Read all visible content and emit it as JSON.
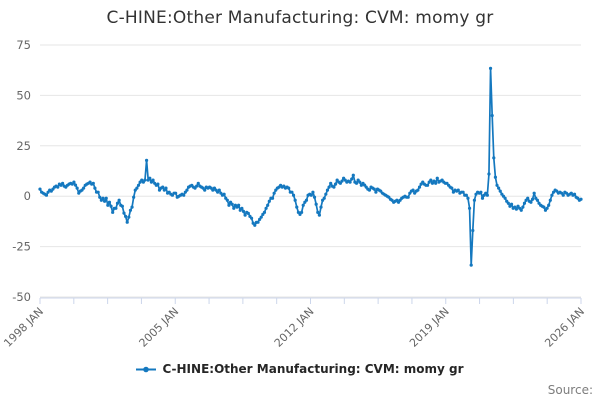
{
  "header": {
    "title": "C-HINE:Other Manufacturing: CVM: momy gr"
  },
  "legend": {
    "label": "C-HINE:Other Manufacturing: CVM: momy gr"
  },
  "footer": {
    "source_label": "Source:"
  },
  "colors": {
    "series": "#1478bf",
    "axis_line": "#ccd6eb",
    "grid_line": "#e6e6e6",
    "tick_label": "#666666",
    "title_text": "#333333",
    "legend_text": "#262626",
    "source_text": "#7d7d7d",
    "background": "#ffffff"
  },
  "chart_data": {
    "type": "line",
    "title": "C-HINE:Other Manufacturing: CVM: momy gr",
    "x_range": [
      "1998 JAN",
      "2026 JAN"
    ],
    "x_tick_labels": [
      "1998 JAN",
      "2005 JAN",
      "2012 JAN",
      "2019 JAN",
      "2026 JAN"
    ],
    "x_minor_tick_count": 17,
    "ylim": [
      -50,
      75
    ],
    "y_ticks": [
      75,
      50,
      25,
      0,
      -25,
      -50
    ],
    "grid": "horizontal",
    "legend_position": "bottom",
    "marker": "circle",
    "series": [
      {
        "name": "C-HINE:Other Manufacturing: CVM: momy gr",
        "color": "#1478bf",
        "start": "1998 JAN",
        "frequency": "monthly",
        "unit": "percent growth",
        "values": [
          3.5,
          2,
          1.5,
          1,
          0.5,
          2,
          3,
          2.5,
          3.5,
          4.5,
          5,
          4.5,
          6,
          5.4,
          6.4,
          5,
          4.5,
          5.4,
          6,
          6.4,
          6,
          7,
          5.5,
          4,
          1.5,
          2.5,
          3,
          4,
          5.4,
          6,
          6.4,
          7,
          6,
          6.4,
          4,
          2,
          2,
          -0.5,
          -2,
          -1,
          -2.5,
          -1,
          -4.5,
          -3,
          -5,
          -8,
          -6,
          -6,
          -3.5,
          -2,
          -4.5,
          -5,
          -8.4,
          -10,
          -12.9,
          -10.4,
          -7,
          -5.4,
          -0.5,
          3,
          4,
          5.4,
          7,
          8,
          7,
          8,
          17.8,
          8,
          8.9,
          7,
          8,
          6.4,
          5.4,
          6,
          3,
          4,
          4.5,
          3,
          4,
          1.5,
          2,
          1,
          0.5,
          1.5,
          1.5,
          -0.5,
          0,
          0.5,
          1,
          0.5,
          2,
          3,
          4.5,
          5,
          5.4,
          4.5,
          4,
          5,
          6.4,
          5,
          4.5,
          4,
          3,
          4.5,
          4,
          4.5,
          4,
          3,
          4,
          3,
          2,
          3,
          1.5,
          0.5,
          1,
          -1,
          -2,
          -4.5,
          -3,
          -4,
          -6,
          -4.5,
          -5.4,
          -4.5,
          -7,
          -6,
          -7.5,
          -9.4,
          -8,
          -8.5,
          -10,
          -10.9,
          -13.4,
          -14.4,
          -13,
          -12.9,
          -11.5,
          -10.4,
          -9,
          -8,
          -6,
          -4.5,
          -2.5,
          -1,
          -1,
          1.5,
          3,
          4,
          4.5,
          5.4,
          4.5,
          5,
          4,
          4.5,
          4,
          2,
          2,
          0.5,
          -2,
          -5.4,
          -8,
          -9,
          -8,
          -4.5,
          -3,
          -2,
          0.5,
          1,
          0.5,
          2,
          -0.5,
          -4,
          -8,
          -9.4,
          -5.4,
          -2,
          -1,
          1,
          3,
          4.5,
          6.4,
          5,
          4.5,
          6,
          8,
          7,
          6.4,
          7.5,
          8.9,
          8,
          7,
          7.5,
          7,
          8.5,
          10.4,
          7,
          6.4,
          8,
          7,
          5.4,
          6.4,
          5.5,
          4.5,
          3.5,
          3,
          4.5,
          4,
          3.5,
          2,
          3.5,
          3,
          2.5,
          1.5,
          1,
          0.5,
          0,
          -0.5,
          -1.5,
          -2,
          -3,
          -2.5,
          -2,
          -3,
          -2,
          -1,
          -0.5,
          0,
          -0.5,
          -0.5,
          1.5,
          2.5,
          3,
          1.5,
          2.5,
          3,
          4.5,
          6,
          7,
          6,
          5.4,
          5.4,
          7,
          8,
          6.4,
          7.5,
          6.4,
          8.9,
          7,
          7.5,
          8,
          7,
          6.4,
          6.4,
          5.4,
          4.5,
          4,
          2,
          3,
          2.5,
          3,
          1.5,
          2,
          2,
          0.5,
          0.5,
          -1,
          -6,
          -34.2,
          -17,
          -2,
          1,
          2,
          1.5,
          2,
          -1,
          0.5,
          1.5,
          0.5,
          11,
          63.4,
          40,
          19,
          9.4,
          5.4,
          4,
          2.5,
          1,
          0,
          -1,
          -2.5,
          -3.5,
          -5,
          -4,
          -6,
          -5.4,
          -6.4,
          -5,
          -6,
          -7,
          -5.4,
          -3.5,
          -2,
          -1,
          -2.5,
          -3,
          -1.5,
          1.5,
          -1,
          -2,
          -3.5,
          -4.5,
          -5,
          -5.4,
          -7,
          -6,
          -4.5,
          -2,
          0.5,
          2,
          3,
          2.5,
          1.5,
          2,
          1.5,
          0.5,
          2,
          1.5,
          0.5,
          1,
          1.5,
          0.5,
          1,
          -0.5,
          -1,
          -2,
          -1.5
        ]
      }
    ]
  }
}
